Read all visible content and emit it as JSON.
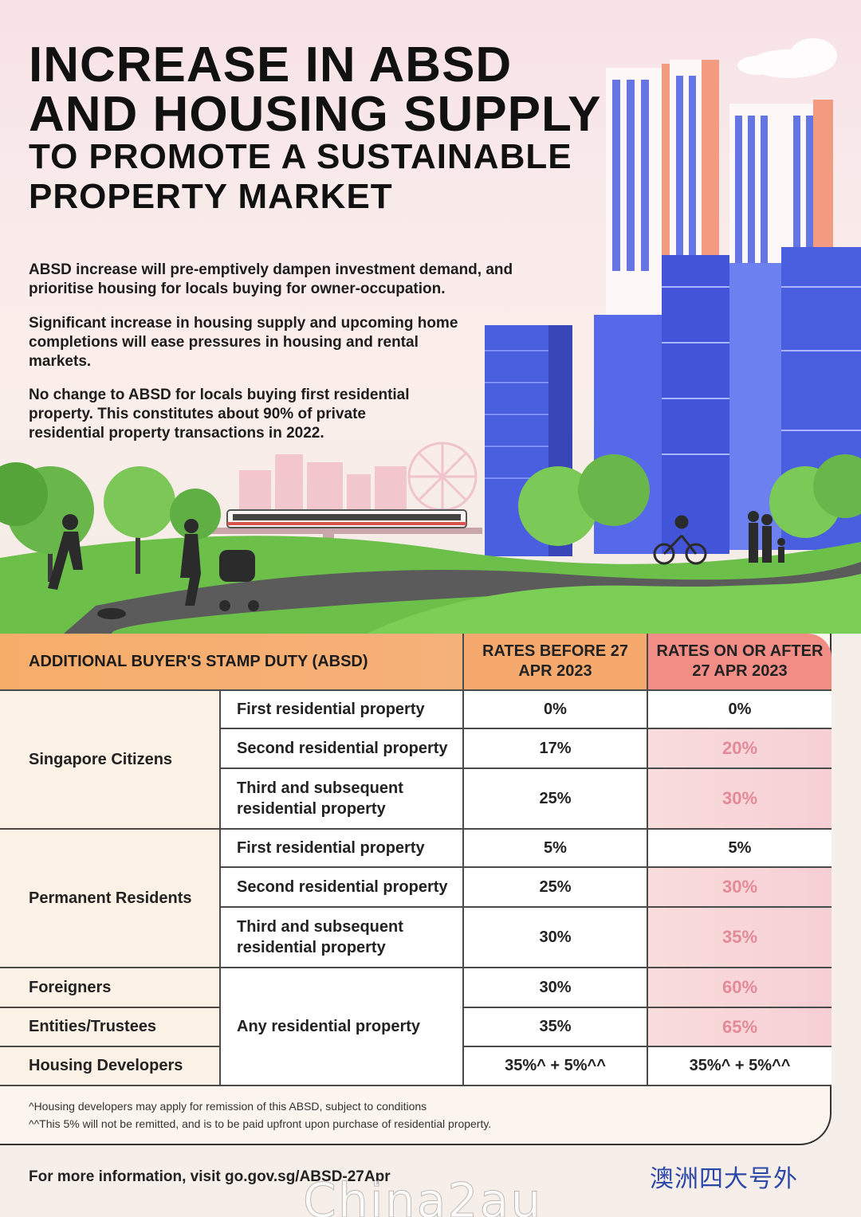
{
  "header": {
    "title_line1": "INCREASE IN ABSD",
    "title_line2": "AND HOUSING SUPPLY",
    "title_line3": "TO PROMOTE A SUSTAINABLE",
    "title_line4": "PROPERTY MARKET"
  },
  "paragraphs": [
    "ABSD increase will pre-emptively dampen investment demand, and prioritise housing for locals buying for owner-occupation.",
    "Significant increase in housing supply and upcoming home completions will ease pressures in housing and rental markets.",
    "No change to ABSD for locals buying first residential property. This constitutes about 90% of private residential property transactions in 2022."
  ],
  "table": {
    "header_main": "ADDITIONAL BUYER'S STAMP DUTY (ABSD)",
    "header_before": "RATES BEFORE 27 APR 2023",
    "header_after": "RATES ON OR AFTER 27 APR 2023",
    "groups": {
      "citizens": "Singapore Citizens",
      "pr": "Permanent Residents",
      "foreigners": "Foreigners",
      "entities": "Entities/Trustees",
      "developers": "Housing Developers"
    },
    "types": {
      "first": "First residential property",
      "second": "Second residential property",
      "third": "Third and subsequent residential property",
      "any": "Any residential property"
    },
    "rows": [
      {
        "before": "0%",
        "after": "0%"
      },
      {
        "before": "17%",
        "after": "20%"
      },
      {
        "before": "25%",
        "after": "30%"
      },
      {
        "before": "5%",
        "after": "5%"
      },
      {
        "before": "25%",
        "after": "30%"
      },
      {
        "before": "30%",
        "after": "35%"
      },
      {
        "before": "30%",
        "after": "60%"
      },
      {
        "before": "35%",
        "after": "65%"
      },
      {
        "before": "35%^ + 5%^^",
        "after": "35%^ + 5%^^"
      }
    ],
    "note1": "^Housing developers may apply for remission of this ABSD, subject to conditions",
    "note2": "^^This 5% will not be remitted, and is to be paid upfront upon purchase of residential property."
  },
  "footer": {
    "text": "For more information, visit ",
    "link": "go.gov.sg/ABSD-27Apr"
  },
  "watermark": {
    "cn": "澳洲四大号外",
    "en": "Chinа2au"
  },
  "colors": {
    "header_orange": "#f7ad6a",
    "header_pink": "#f28d86",
    "increase_text": "#e28a97",
    "grass": "#6cc04a",
    "building_blue": "#4a5fe0"
  }
}
